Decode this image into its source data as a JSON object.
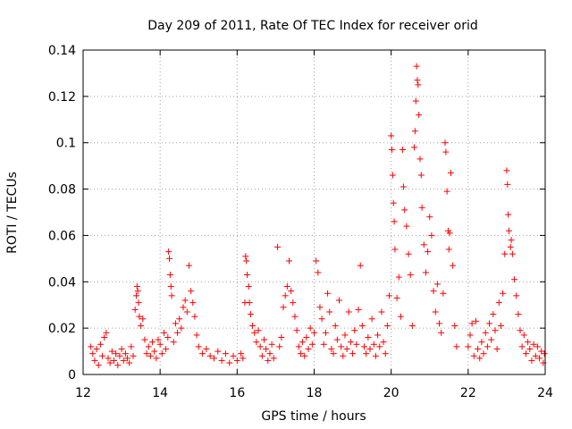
{
  "chart_data": {
    "type": "scatter",
    "title": "Day 209 of 2011, Rate Of TEC Index for receiver orid",
    "xlabel": "GPS time / hours",
    "ylabel": "ROTI / TECUs",
    "xlim": [
      12,
      24
    ],
    "ylim": [
      0,
      0.14
    ],
    "xticks": [
      12,
      14,
      16,
      18,
      20,
      22,
      24
    ],
    "yticks": [
      0,
      0.02,
      0.04,
      0.06,
      0.08,
      0.1,
      0.12,
      0.14
    ],
    "xtick_labels": [
      "12",
      "14",
      "16",
      "18",
      "20",
      "22",
      "24"
    ],
    "ytick_labels": [
      "0",
      "0.02",
      "0.04",
      "0.06",
      "0.08",
      "0.1",
      "0.12",
      "0.14"
    ],
    "grid": true,
    "marker": "plus",
    "series": [
      {
        "name": "ROTI",
        "color": "#ff0000",
        "points": [
          [
            12.2,
            0.012
          ],
          [
            12.25,
            0.009
          ],
          [
            12.3,
            0.006
          ],
          [
            12.35,
            0.011
          ],
          [
            12.4,
            0.004
          ],
          [
            12.45,
            0.013
          ],
          [
            12.5,
            0.008
          ],
          [
            12.55,
            0.016
          ],
          [
            12.6,
            0.018
          ],
          [
            12.65,
            0.007
          ],
          [
            12.7,
            0.005
          ],
          [
            12.75,
            0.01
          ],
          [
            12.8,
            0.006
          ],
          [
            12.85,
            0.009
          ],
          [
            12.9,
            0.004
          ],
          [
            12.95,
            0.008
          ],
          [
            13.0,
            0.011
          ],
          [
            13.05,
            0.006
          ],
          [
            13.1,
            0.009
          ],
          [
            13.15,
            0.007
          ],
          [
            13.2,
            0.005
          ],
          [
            13.25,
            0.012
          ],
          [
            13.3,
            0.008
          ],
          [
            13.35,
            0.028
          ],
          [
            13.38,
            0.034
          ],
          [
            13.4,
            0.038
          ],
          [
            13.42,
            0.036
          ],
          [
            13.44,
            0.031
          ],
          [
            13.46,
            0.025
          ],
          [
            13.5,
            0.021
          ],
          [
            13.55,
            0.024
          ],
          [
            13.6,
            0.015
          ],
          [
            13.65,
            0.009
          ],
          [
            13.7,
            0.012
          ],
          [
            13.75,
            0.008
          ],
          [
            13.8,
            0.014
          ],
          [
            13.85,
            0.01
          ],
          [
            13.9,
            0.007
          ],
          [
            13.95,
            0.015
          ],
          [
            14.0,
            0.013
          ],
          [
            14.05,
            0.009
          ],
          [
            14.1,
            0.018
          ],
          [
            14.15,
            0.011
          ],
          [
            14.2,
            0.016
          ],
          [
            14.22,
            0.053
          ],
          [
            14.24,
            0.05
          ],
          [
            14.26,
            0.043
          ],
          [
            14.28,
            0.038
          ],
          [
            14.3,
            0.034
          ],
          [
            14.35,
            0.014
          ],
          [
            14.4,
            0.022
          ],
          [
            14.45,
            0.018
          ],
          [
            14.5,
            0.024
          ],
          [
            14.55,
            0.02
          ],
          [
            14.6,
            0.029
          ],
          [
            14.65,
            0.032
          ],
          [
            14.7,
            0.027
          ],
          [
            14.75,
            0.047
          ],
          [
            14.8,
            0.036
          ],
          [
            14.85,
            0.031
          ],
          [
            14.9,
            0.025
          ],
          [
            14.95,
            0.017
          ],
          [
            15.0,
            0.012
          ],
          [
            15.1,
            0.009
          ],
          [
            15.2,
            0.011
          ],
          [
            15.3,
            0.008
          ],
          [
            15.4,
            0.007
          ],
          [
            15.5,
            0.01
          ],
          [
            15.6,
            0.006
          ],
          [
            15.7,
            0.009
          ],
          [
            15.8,
            0.005
          ],
          [
            15.9,
            0.008
          ],
          [
            16.0,
            0.006
          ],
          [
            16.1,
            0.009
          ],
          [
            16.15,
            0.007
          ],
          [
            16.2,
            0.031
          ],
          [
            16.22,
            0.051
          ],
          [
            16.24,
            0.049
          ],
          [
            16.26,
            0.043
          ],
          [
            16.3,
            0.038
          ],
          [
            16.32,
            0.031
          ],
          [
            16.35,
            0.026
          ],
          [
            16.4,
            0.021
          ],
          [
            16.45,
            0.018
          ],
          [
            16.5,
            0.014
          ],
          [
            16.55,
            0.019
          ],
          [
            16.6,
            0.012
          ],
          [
            16.65,
            0.008
          ],
          [
            16.7,
            0.015
          ],
          [
            16.75,
            0.011
          ],
          [
            16.8,
            0.006
          ],
          [
            16.85,
            0.009
          ],
          [
            16.9,
            0.013
          ],
          [
            16.95,
            0.007
          ],
          [
            17.05,
            0.055
          ],
          [
            17.1,
            0.012
          ],
          [
            17.15,
            0.016
          ],
          [
            17.2,
            0.029
          ],
          [
            17.25,
            0.034
          ],
          [
            17.3,
            0.038
          ],
          [
            17.35,
            0.049
          ],
          [
            17.4,
            0.036
          ],
          [
            17.45,
            0.031
          ],
          [
            17.5,
            0.025
          ],
          [
            17.55,
            0.019
          ],
          [
            17.6,
            0.012
          ],
          [
            17.65,
            0.009
          ],
          [
            17.7,
            0.014
          ],
          [
            17.75,
            0.008
          ],
          [
            17.8,
            0.016
          ],
          [
            17.85,
            0.011
          ],
          [
            17.9,
            0.02
          ],
          [
            17.95,
            0.013
          ],
          [
            18.0,
            0.018
          ],
          [
            18.05,
            0.049
          ],
          [
            18.1,
            0.044
          ],
          [
            18.15,
            0.029
          ],
          [
            18.2,
            0.024
          ],
          [
            18.25,
            0.013
          ],
          [
            18.3,
            0.018
          ],
          [
            18.35,
            0.035
          ],
          [
            18.4,
            0.027
          ],
          [
            18.45,
            0.011
          ],
          [
            18.5,
            0.009
          ],
          [
            18.55,
            0.021
          ],
          [
            18.6,
            0.015
          ],
          [
            18.65,
            0.032
          ],
          [
            18.7,
            0.012
          ],
          [
            18.75,
            0.008
          ],
          [
            18.8,
            0.017
          ],
          [
            18.85,
            0.011
          ],
          [
            18.9,
            0.027
          ],
          [
            18.95,
            0.014
          ],
          [
            19.0,
            0.009
          ],
          [
            19.05,
            0.019
          ],
          [
            19.1,
            0.013
          ],
          [
            19.15,
            0.028
          ],
          [
            19.2,
            0.047
          ],
          [
            19.25,
            0.021
          ],
          [
            19.3,
            0.012
          ],
          [
            19.35,
            0.009
          ],
          [
            19.4,
            0.016
          ],
          [
            19.45,
            0.011
          ],
          [
            19.5,
            0.024
          ],
          [
            19.55,
            0.013
          ],
          [
            19.6,
            0.008
          ],
          [
            19.65,
            0.017
          ],
          [
            19.7,
            0.012
          ],
          [
            19.75,
            0.027
          ],
          [
            19.8,
            0.014
          ],
          [
            19.85,
            0.009
          ],
          [
            19.9,
            0.021
          ],
          [
            19.95,
            0.034
          ],
          [
            20.0,
            0.103
          ],
          [
            20.02,
            0.097
          ],
          [
            20.04,
            0.086
          ],
          [
            20.06,
            0.074
          ],
          [
            20.08,
            0.066
          ],
          [
            20.1,
            0.054
          ],
          [
            20.15,
            0.033
          ],
          [
            20.2,
            0.042
          ],
          [
            20.25,
            0.025
          ],
          [
            20.3,
            0.097
          ],
          [
            20.32,
            0.081
          ],
          [
            20.35,
            0.071
          ],
          [
            20.4,
            0.064
          ],
          [
            20.45,
            0.052
          ],
          [
            20.5,
            0.043
          ],
          [
            20.55,
            0.021
          ],
          [
            20.6,
            0.098
          ],
          [
            20.62,
            0.105
          ],
          [
            20.64,
            0.118
          ],
          [
            20.66,
            0.133
          ],
          [
            20.68,
            0.127
          ],
          [
            20.7,
            0.125
          ],
          [
            20.72,
            0.112
          ],
          [
            20.75,
            0.093
          ],
          [
            20.78,
            0.086
          ],
          [
            20.8,
            0.072
          ],
          [
            20.85,
            0.056
          ],
          [
            20.9,
            0.044
          ],
          [
            20.95,
            0.053
          ],
          [
            21.0,
            0.068
          ],
          [
            21.05,
            0.06
          ],
          [
            21.1,
            0.036
          ],
          [
            21.15,
            0.027
          ],
          [
            21.2,
            0.039
          ],
          [
            21.25,
            0.022
          ],
          [
            21.3,
            0.018
          ],
          [
            21.35,
            0.035
          ],
          [
            21.4,
            0.1
          ],
          [
            21.42,
            0.096
          ],
          [
            21.45,
            0.079
          ],
          [
            21.48,
            0.062
          ],
          [
            21.5,
            0.054
          ],
          [
            21.52,
            0.061
          ],
          [
            21.55,
            0.087
          ],
          [
            21.6,
            0.047
          ],
          [
            21.65,
            0.021
          ],
          [
            21.7,
            0.012
          ],
          [
            22.0,
            0.012
          ],
          [
            22.05,
            0.017
          ],
          [
            22.1,
            0.022
          ],
          [
            22.15,
            0.008
          ],
          [
            22.2,
            0.023
          ],
          [
            22.25,
            0.011
          ],
          [
            22.3,
            0.007
          ],
          [
            22.35,
            0.014
          ],
          [
            22.4,
            0.009
          ],
          [
            22.45,
            0.018
          ],
          [
            22.5,
            0.012
          ],
          [
            22.55,
            0.022
          ],
          [
            22.6,
            0.015
          ],
          [
            22.65,
            0.026
          ],
          [
            22.7,
            0.019
          ],
          [
            22.75,
            0.011
          ],
          [
            22.8,
            0.031
          ],
          [
            22.85,
            0.021
          ],
          [
            22.9,
            0.035
          ],
          [
            22.95,
            0.052
          ],
          [
            23.0,
            0.088
          ],
          [
            23.02,
            0.082
          ],
          [
            23.04,
            0.069
          ],
          [
            23.06,
            0.062
          ],
          [
            23.1,
            0.055
          ],
          [
            23.12,
            0.058
          ],
          [
            23.15,
            0.052
          ],
          [
            23.2,
            0.041
          ],
          [
            23.25,
            0.034
          ],
          [
            23.3,
            0.026
          ],
          [
            23.35,
            0.019
          ],
          [
            23.4,
            0.012
          ],
          [
            23.45,
            0.017
          ],
          [
            23.5,
            0.009
          ],
          [
            23.55,
            0.014
          ],
          [
            23.6,
            0.011
          ],
          [
            23.65,
            0.006
          ],
          [
            23.7,
            0.013
          ],
          [
            23.75,
            0.008
          ],
          [
            23.8,
            0.012
          ],
          [
            23.85,
            0.007
          ],
          [
            23.9,
            0.01
          ],
          [
            23.95,
            0.005
          ],
          [
            23.98,
            0.009
          ]
        ]
      }
    ]
  }
}
